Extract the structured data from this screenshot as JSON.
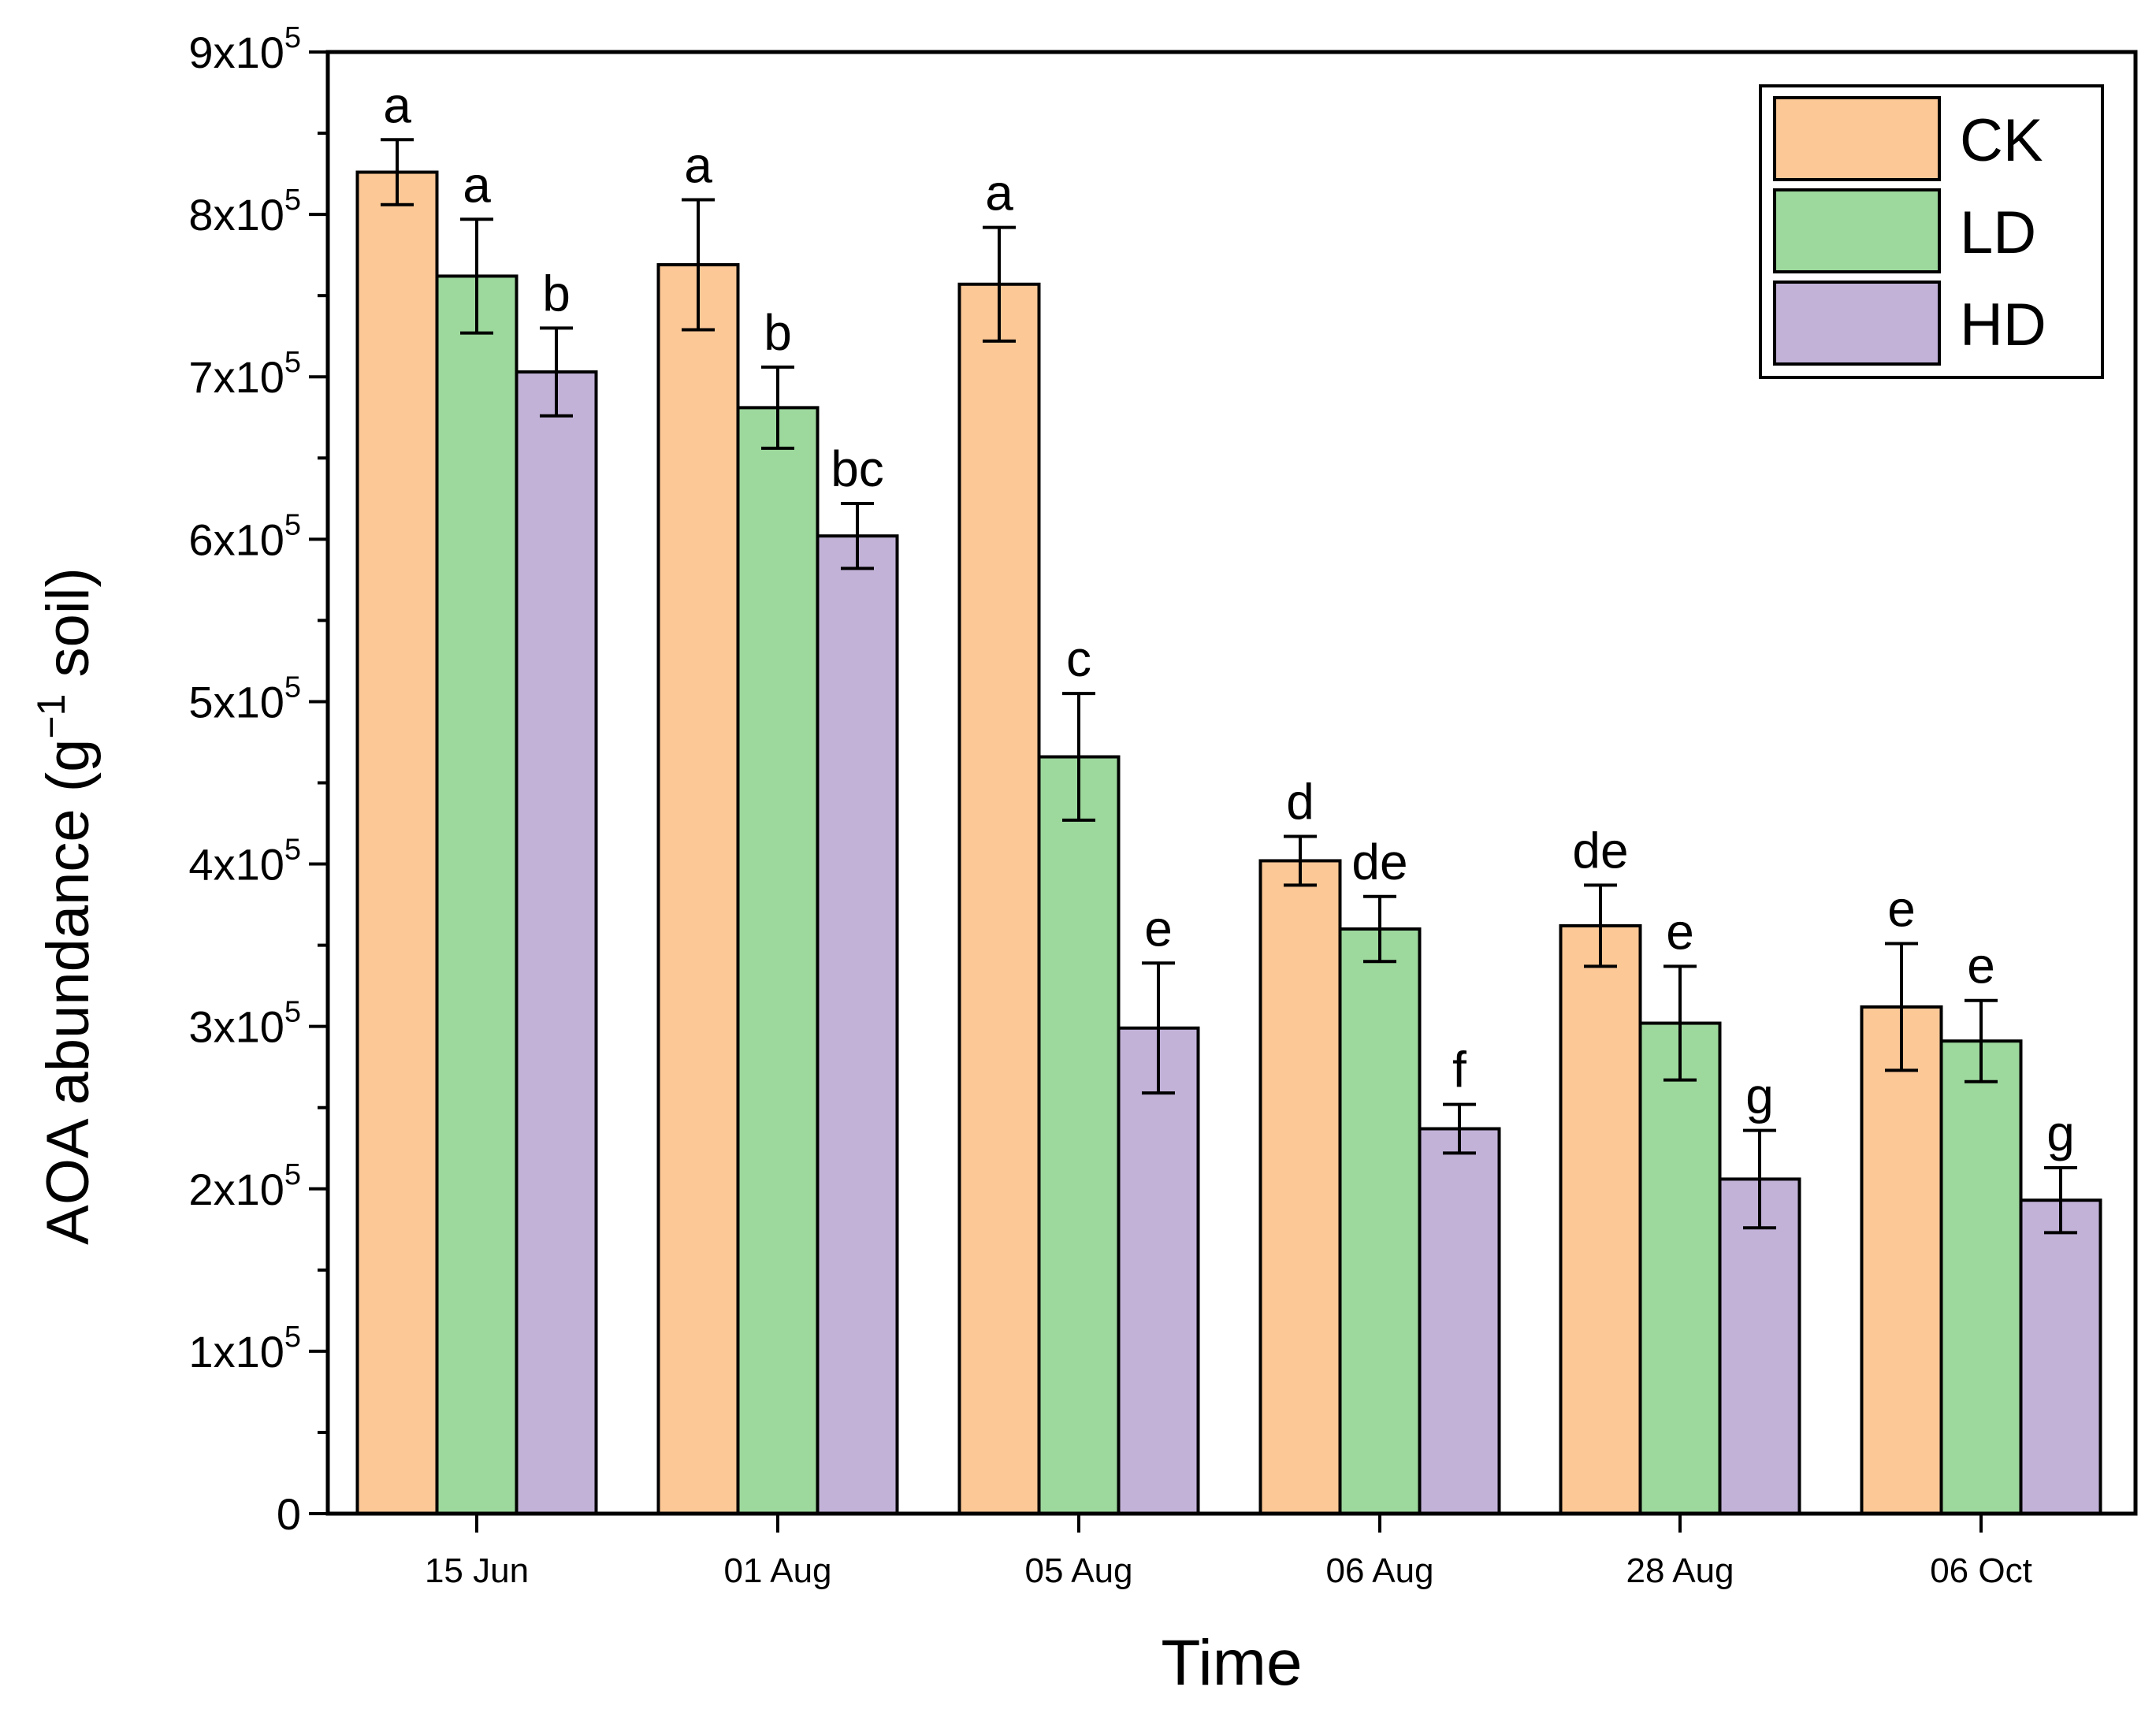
{
  "chart_data": {
    "type": "bar",
    "title": "",
    "xlabel": "Time",
    "ylabel": {
      "main": "AOA abundance (g",
      "sup": "−1",
      "tail": " soil)"
    },
    "ylim": [
      0,
      900000
    ],
    "yticks": [
      {
        "value": 0,
        "base": "0",
        "exp": ""
      },
      {
        "value": 100000,
        "base": "1x10",
        "exp": "5"
      },
      {
        "value": 200000,
        "base": "2x10",
        "exp": "5"
      },
      {
        "value": 300000,
        "base": "3x10",
        "exp": "5"
      },
      {
        "value": 400000,
        "base": "4x10",
        "exp": "5"
      },
      {
        "value": 500000,
        "base": "5x10",
        "exp": "5"
      },
      {
        "value": 600000,
        "base": "6x10",
        "exp": "5"
      },
      {
        "value": 700000,
        "base": "7x10",
        "exp": "5"
      },
      {
        "value": 800000,
        "base": "8x10",
        "exp": "5"
      },
      {
        "value": 900000,
        "base": "9x10",
        "exp": "5"
      }
    ],
    "categories": [
      "15 Jun",
      "01 Aug",
      "05 Aug",
      "06 Aug",
      "28 Aug",
      "06 Oct"
    ],
    "legend_position": "top-right",
    "series": [
      {
        "name": "CK",
        "color": "#FCC896",
        "values": [
          826000,
          769000,
          757000,
          402000,
          362000,
          312000
        ],
        "errors": [
          20000,
          40000,
          35000,
          15000,
          25000,
          39000
        ],
        "labels": [
          "a",
          "a",
          "a",
          "d",
          "de",
          "e"
        ]
      },
      {
        "name": "LD",
        "color": "#9DD89D",
        "values": [
          762000,
          681000,
          466000,
          360000,
          302000,
          291000
        ],
        "errors": [
          35000,
          25000,
          39000,
          20000,
          35000,
          25000
        ],
        "labels": [
          "a",
          "b",
          "c",
          "de",
          "e",
          "e"
        ]
      },
      {
        "name": "HD",
        "color": "#C2B2D8",
        "values": [
          703000,
          602000,
          299000,
          237000,
          206000,
          193000
        ],
        "errors": [
          27000,
          20000,
          40000,
          15000,
          30000,
          20000
        ],
        "labels": [
          "b",
          "bc",
          "e",
          "f",
          "g",
          "g"
        ]
      }
    ]
  }
}
